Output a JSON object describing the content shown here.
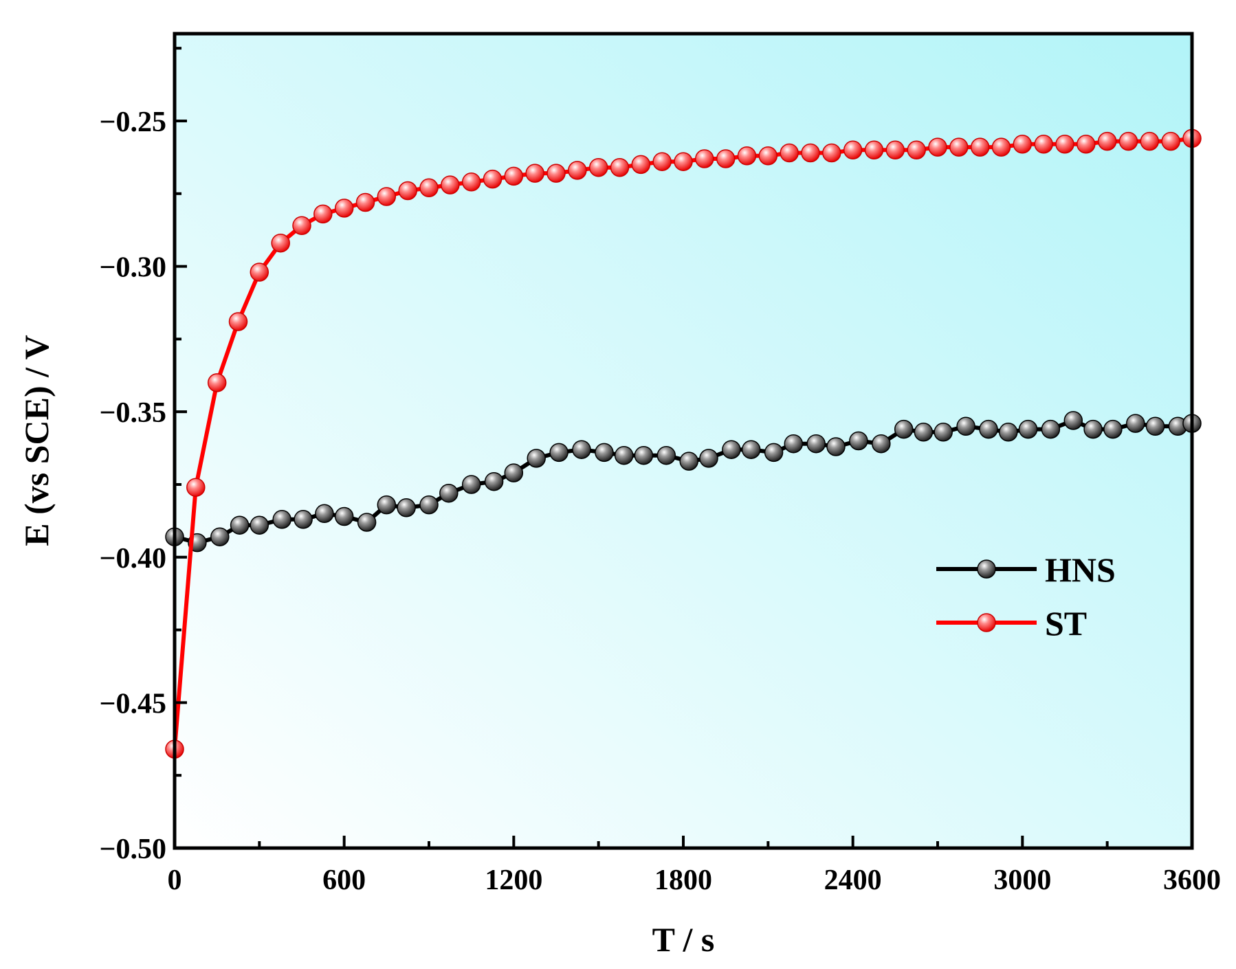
{
  "colors": {
    "background_gradient_start": "#ffffff",
    "background_gradient_end": "#b2f4f8",
    "frame": "#000000",
    "hns_line": "#000000",
    "hns_marker": "#1a1a1a",
    "st_line": "#ff0000",
    "st_marker": "#ff1a1a"
  },
  "chart_data": {
    "type": "line",
    "title": "",
    "xlabel": "T / s",
    "ylabel": "E (vs SCE) / V",
    "xlim": [
      0,
      3600
    ],
    "ylim": [
      -0.5,
      -0.22
    ],
    "x_ticks": [
      0,
      600,
      1200,
      1800,
      2400,
      3000,
      3600
    ],
    "x_tick_labels": [
      "0",
      "600",
      "1200",
      "1800",
      "2400",
      "3000",
      "3600"
    ],
    "y_ticks": [
      -0.5,
      -0.45,
      -0.4,
      -0.35,
      -0.3,
      -0.25
    ],
    "y_tick_labels": [
      "−0.50",
      "−0.45",
      "−0.40",
      "−0.35",
      "−0.30",
      "−0.25"
    ],
    "grid": false,
    "legend_position": "center-right",
    "series": [
      {
        "name": "HNS",
        "color": "#000000",
        "x": [
          0,
          80,
          160,
          230,
          300,
          380,
          455,
          530,
          600,
          680,
          750,
          820,
          900,
          970,
          1050,
          1130,
          1200,
          1280,
          1360,
          1440,
          1520,
          1590,
          1660,
          1740,
          1820,
          1890,
          1970,
          2040,
          2120,
          2190,
          2270,
          2340,
          2420,
          2500,
          2580,
          2650,
          2720,
          2800,
          2880,
          2950,
          3020,
          3100,
          3180,
          3250,
          3320,
          3400,
          3470,
          3550,
          3600
        ],
        "y": [
          -0.393,
          -0.395,
          -0.393,
          -0.389,
          -0.389,
          -0.387,
          -0.387,
          -0.385,
          -0.386,
          -0.388,
          -0.382,
          -0.383,
          -0.382,
          -0.378,
          -0.375,
          -0.374,
          -0.371,
          -0.366,
          -0.364,
          -0.363,
          -0.364,
          -0.365,
          -0.365,
          -0.365,
          -0.367,
          -0.366,
          -0.363,
          -0.363,
          -0.364,
          -0.361,
          -0.361,
          -0.362,
          -0.36,
          -0.361,
          -0.356,
          -0.357,
          -0.357,
          -0.355,
          -0.356,
          -0.357,
          -0.356,
          -0.356,
          -0.353,
          -0.356,
          -0.356,
          -0.354,
          -0.355,
          -0.355,
          -0.354
        ]
      },
      {
        "name": "ST",
        "color": "#ff0000",
        "x": [
          0,
          75,
          150,
          225,
          300,
          375,
          450,
          525,
          600,
          675,
          750,
          825,
          900,
          975,
          1050,
          1125,
          1200,
          1275,
          1350,
          1425,
          1500,
          1575,
          1650,
          1725,
          1800,
          1875,
          1950,
          2025,
          2100,
          2175,
          2250,
          2325,
          2400,
          2475,
          2550,
          2625,
          2700,
          2775,
          2850,
          2925,
          3000,
          3075,
          3150,
          3225,
          3300,
          3375,
          3450,
          3525,
          3600
        ],
        "y": [
          -0.466,
          -0.376,
          -0.34,
          -0.319,
          -0.302,
          -0.292,
          -0.286,
          -0.282,
          -0.28,
          -0.278,
          -0.276,
          -0.274,
          -0.273,
          -0.272,
          -0.271,
          -0.27,
          -0.269,
          -0.268,
          -0.268,
          -0.267,
          -0.266,
          -0.266,
          -0.265,
          -0.264,
          -0.264,
          -0.263,
          -0.263,
          -0.262,
          -0.262,
          -0.261,
          -0.261,
          -0.261,
          -0.26,
          -0.26,
          -0.26,
          -0.26,
          -0.259,
          -0.259,
          -0.259,
          -0.259,
          -0.258,
          -0.258,
          -0.258,
          -0.258,
          -0.257,
          -0.257,
          -0.257,
          -0.257,
          -0.256
        ]
      }
    ]
  }
}
